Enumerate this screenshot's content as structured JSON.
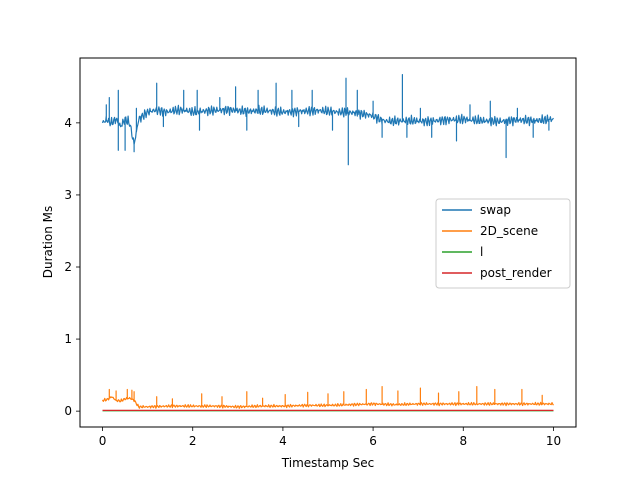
{
  "chart_data": {
    "type": "line",
    "title": "",
    "xlabel": "Timestamp Sec",
    "ylabel": "Duration Ms",
    "xlim": [
      -0.5,
      10.5
    ],
    "ylim": [
      -0.22,
      4.9
    ],
    "xticks": [
      0,
      2,
      4,
      6,
      8,
      10
    ],
    "yticks": [
      0,
      1,
      2,
      3,
      4
    ],
    "xtick_labels": [
      "0",
      "2",
      "4",
      "6",
      "8",
      "10"
    ],
    "ytick_labels": [
      "0",
      "1",
      "2",
      "3",
      "4"
    ],
    "grid": false,
    "legend_position": "center-right",
    "series": [
      {
        "name": "swap",
        "color": "#1f77b4",
        "x": [
          0.0,
          0.1,
          0.2,
          0.3,
          0.4,
          0.5,
          0.6,
          0.7,
          0.8,
          1.0,
          1.2,
          1.4,
          1.6,
          1.8,
          2.0,
          2.4,
          2.8,
          3.2,
          3.6,
          4.0,
          4.4,
          4.8,
          5.2,
          5.6,
          6.0,
          6.2,
          6.4,
          6.8,
          7.2,
          7.6,
          8.0,
          8.4,
          8.8,
          9.2,
          9.6,
          10.0
        ],
        "values": [
          4.0,
          4.05,
          4.0,
          4.05,
          3.95,
          4.05,
          4.0,
          3.7,
          4.05,
          4.15,
          4.18,
          4.15,
          4.17,
          4.18,
          4.15,
          4.17,
          4.18,
          4.16,
          4.17,
          4.15,
          4.16,
          4.17,
          4.15,
          4.14,
          4.1,
          4.03,
          4.02,
          4.03,
          4.02,
          4.04,
          4.05,
          4.03,
          4.02,
          4.04,
          4.03,
          4.05
        ],
        "spikes": [
          [
            0.08,
            4.25
          ],
          [
            0.15,
            4.35
          ],
          [
            0.35,
            4.45
          ],
          [
            0.35,
            3.62
          ],
          [
            0.5,
            3.62
          ],
          [
            0.7,
            3.6
          ],
          [
            0.75,
            4.2
          ],
          [
            1.2,
            4.55
          ],
          [
            1.35,
            3.95
          ],
          [
            1.8,
            4.45
          ],
          [
            2.1,
            4.45
          ],
          [
            2.15,
            3.9
          ],
          [
            2.6,
            4.35
          ],
          [
            2.95,
            4.5
          ],
          [
            3.2,
            3.9
          ],
          [
            3.45,
            4.45
          ],
          [
            3.85,
            4.55
          ],
          [
            4.2,
            4.45
          ],
          [
            4.35,
            3.95
          ],
          [
            4.65,
            4.45
          ],
          [
            5.1,
            3.9
          ],
          [
            5.4,
            4.62
          ],
          [
            5.45,
            3.42
          ],
          [
            5.65,
            4.45
          ],
          [
            6.0,
            4.3
          ],
          [
            6.2,
            3.8
          ],
          [
            6.65,
            4.67
          ],
          [
            6.75,
            3.8
          ],
          [
            7.05,
            4.2
          ],
          [
            7.3,
            3.8
          ],
          [
            7.85,
            3.75
          ],
          [
            8.15,
            4.25
          ],
          [
            8.6,
            4.3
          ],
          [
            8.95,
            3.52
          ],
          [
            9.2,
            4.2
          ],
          [
            9.55,
            3.8
          ],
          [
            9.9,
            3.9
          ]
        ]
      },
      {
        "name": "2D_scene",
        "color": "#ff7f0e",
        "x": [
          0.0,
          0.1,
          0.2,
          0.3,
          0.4,
          0.5,
          0.6,
          0.7,
          0.8,
          1.0,
          1.5,
          2.0,
          2.5,
          3.0,
          3.5,
          4.0,
          4.5,
          5.0,
          5.5,
          6.0,
          6.5,
          7.0,
          7.5,
          8.0,
          8.5,
          9.0,
          9.5,
          10.0
        ],
        "values": [
          0.15,
          0.16,
          0.2,
          0.15,
          0.14,
          0.17,
          0.18,
          0.15,
          0.06,
          0.06,
          0.07,
          0.07,
          0.07,
          0.06,
          0.07,
          0.07,
          0.08,
          0.08,
          0.09,
          0.1,
          0.09,
          0.1,
          0.1,
          0.1,
          0.1,
          0.1,
          0.1,
          0.1
        ],
        "spikes": [
          [
            0.15,
            0.3
          ],
          [
            0.3,
            0.28
          ],
          [
            0.55,
            0.3
          ],
          [
            0.65,
            0.29
          ],
          [
            0.7,
            0.27
          ],
          [
            1.2,
            0.2
          ],
          [
            1.55,
            0.17
          ],
          [
            2.2,
            0.24
          ],
          [
            2.65,
            0.2
          ],
          [
            3.2,
            0.27
          ],
          [
            3.55,
            0.18
          ],
          [
            4.05,
            0.23
          ],
          [
            4.55,
            0.26
          ],
          [
            5.0,
            0.24
          ],
          [
            5.35,
            0.27
          ],
          [
            5.85,
            0.3
          ],
          [
            6.2,
            0.34
          ],
          [
            6.55,
            0.28
          ],
          [
            7.05,
            0.32
          ],
          [
            7.45,
            0.25
          ],
          [
            7.9,
            0.27
          ],
          [
            8.3,
            0.34
          ],
          [
            8.7,
            0.3
          ],
          [
            9.3,
            0.3
          ],
          [
            9.75,
            0.22
          ]
        ]
      },
      {
        "name": "l",
        "color": "#2ca02c",
        "x": [
          0,
          10
        ],
        "values": [
          0.005,
          0.005
        ],
        "spikes": []
      },
      {
        "name": "post_render",
        "color": "#d62728",
        "x": [
          0,
          10
        ],
        "values": [
          0.01,
          0.01
        ],
        "spikes": []
      }
    ]
  }
}
